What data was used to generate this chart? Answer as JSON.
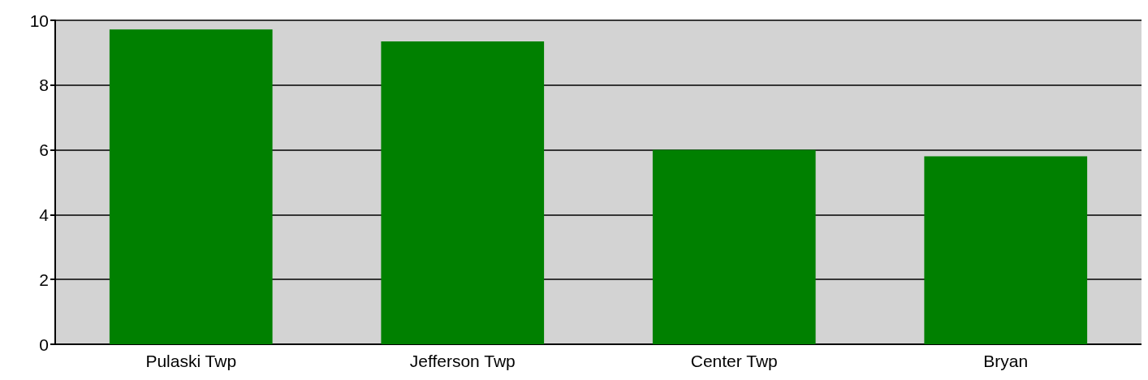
{
  "chart_data": {
    "type": "bar",
    "categories": [
      "Pulaski Twp",
      "Jefferson Twp",
      "Center Twp",
      "Bryan"
    ],
    "values": [
      9.72,
      9.35,
      6.0,
      5.8
    ],
    "color": "#008000",
    "ylim": [
      0,
      10
    ],
    "yticks": [
      0,
      2,
      4,
      6,
      8,
      10
    ],
    "grid": "y"
  }
}
